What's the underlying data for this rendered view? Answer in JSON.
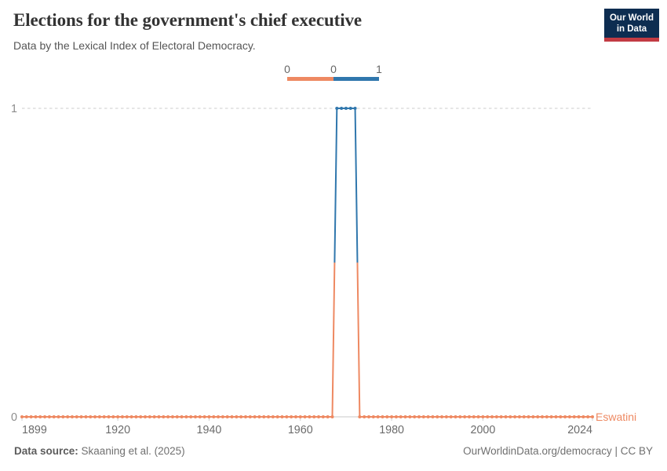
{
  "header": {
    "logo": {
      "line1": "Our World",
      "line2": "in Data"
    }
  },
  "legend": {
    "labels": [
      "0",
      "0",
      "1"
    ]
  },
  "chart_data": {
    "type": "line",
    "title": "Elections for the government's chief executive",
    "subtitle": "Data by the Lexical Index of Electoral Democracy.",
    "entity": "Eswatini",
    "xlim": [
      1899,
      2024
    ],
    "ylim": [
      0,
      1
    ],
    "x_ticks": [
      1899,
      1920,
      1940,
      1960,
      1980,
      2000,
      2024
    ],
    "y_ticks": [
      0,
      1
    ],
    "grid": "dashed gridline at y=1, solid axis at y=0, legend top-center",
    "series": [
      {
        "name": "Eswatini",
        "steps": [
          {
            "from": 1899,
            "to": 1967,
            "value": 0
          },
          {
            "from": 1968,
            "to": 1972,
            "value": 1
          },
          {
            "from": 1973,
            "to": 2024,
            "value": 0
          }
        ]
      }
    ],
    "value_colors": {
      "0": "#EE8962",
      "1": "#3077AD"
    },
    "style_colors": {
      "gridline": "#cdcdcd",
      "axis": "#c9c9c9",
      "tick": "#cdcdcd"
    }
  },
  "footer": {
    "source_label": "Data source:",
    "source": "Skaaning et al. (2025)",
    "attribution": "OurWorldinData.org/democracy | CC BY"
  }
}
